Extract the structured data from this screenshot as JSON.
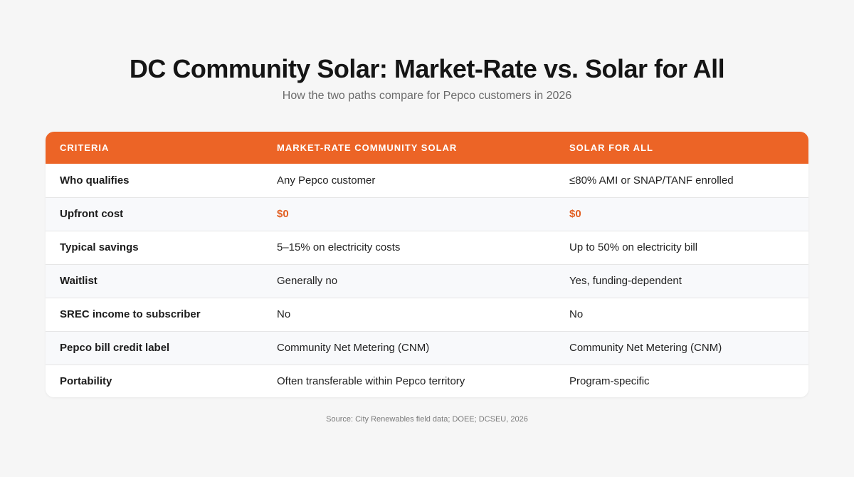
{
  "header": {
    "title": "DC Community Solar: Market-Rate vs. Solar for All",
    "subtitle": "How the two paths compare for Pepco customers in 2026"
  },
  "table": {
    "columns": [
      "CRITERIA",
      "MARKET-RATE COMMUNITY SOLAR",
      "SOLAR FOR ALL"
    ],
    "rows": [
      {
        "criteria": "Who qualifies",
        "market_rate": "Any Pepco customer",
        "solar_for_all": "≤80% AMI or SNAP/TANF enrolled"
      },
      {
        "criteria": "Upfront cost",
        "market_rate": "$0",
        "solar_for_all": "$0"
      },
      {
        "criteria": "Typical savings",
        "market_rate": "5–15% on electricity costs",
        "solar_for_all": "Up to 50% on electricity bill"
      },
      {
        "criteria": "Waitlist",
        "market_rate": "Generally no",
        "solar_for_all": "Yes, funding-dependent"
      },
      {
        "criteria": "SREC income to subscriber",
        "market_rate": "No",
        "solar_for_all": "No"
      },
      {
        "criteria": "Pepco bill credit label",
        "market_rate": "Community Net Metering (CNM)",
        "solar_for_all": "Community Net Metering (CNM)"
      },
      {
        "criteria": "Portability",
        "market_rate": "Often transferable within Pepco territory",
        "solar_for_all": "Program-specific"
      }
    ]
  },
  "footer": {
    "source": "Source: City Renewables field data; DOEE; DCSEU, 2026"
  },
  "colors": {
    "accent": "#ec6426",
    "highlight_text": "#e25f22",
    "background": "#f6f6f6"
  }
}
